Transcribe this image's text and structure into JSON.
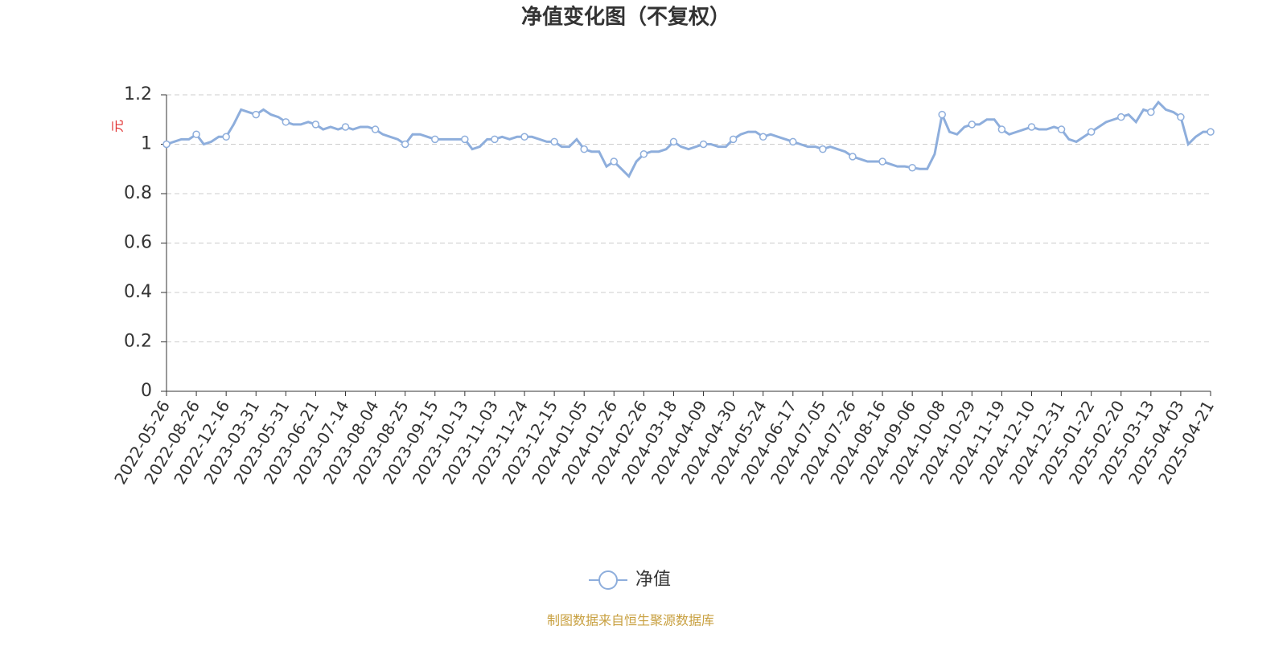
{
  "chart_data": {
    "type": "line",
    "title": "净值变化图（不复权）",
    "y_label": "元",
    "source": "制图数据来自恒生聚源数据库",
    "categories": [
      "2022-05-26",
      null,
      null,
      null,
      "2022-08-26",
      null,
      null,
      null,
      "2022-12-16",
      null,
      null,
      null,
      "2023-03-31",
      null,
      null,
      null,
      "2023-05-31",
      null,
      null,
      null,
      "2023-06-21",
      null,
      null,
      null,
      "2023-07-14",
      null,
      null,
      null,
      "2023-08-04",
      null,
      null,
      null,
      "2023-08-25",
      null,
      null,
      null,
      "2023-09-15",
      null,
      null,
      null,
      "2023-10-13",
      null,
      null,
      null,
      "2023-11-03",
      null,
      null,
      null,
      "2023-11-24",
      null,
      null,
      null,
      "2023-12-15",
      null,
      null,
      null,
      "2024-01-05",
      null,
      null,
      null,
      "2024-01-26",
      null,
      null,
      null,
      "2024-02-26",
      null,
      null,
      null,
      "2024-03-18",
      null,
      null,
      null,
      "2024-04-09",
      null,
      null,
      null,
      "2024-04-30",
      null,
      null,
      null,
      "2024-05-24",
      null,
      null,
      null,
      "2024-06-17",
      null,
      null,
      null,
      "2024-07-05",
      null,
      null,
      null,
      "2024-07-26",
      null,
      null,
      null,
      "2024-08-16",
      null,
      null,
      null,
      "2024-09-06",
      null,
      null,
      null,
      "2024-10-08",
      null,
      null,
      null,
      "2024-10-29",
      null,
      null,
      null,
      "2024-11-19",
      null,
      null,
      null,
      "2024-12-10",
      null,
      null,
      null,
      "2024-12-31",
      null,
      null,
      null,
      "2025-01-22",
      null,
      null,
      null,
      "2025-02-20",
      null,
      null,
      null,
      "2025-03-13",
      null,
      null,
      null,
      "2025-04-03",
      null,
      null,
      null,
      "2025-04-21"
    ],
    "series": [
      {
        "name": "净值",
        "color": "#8eaedc",
        "values": [
          1.0,
          1.01,
          1.02,
          1.02,
          1.04,
          1.0,
          1.01,
          1.03,
          1.03,
          1.08,
          1.14,
          1.13,
          1.12,
          1.14,
          1.12,
          1.11,
          1.09,
          1.08,
          1.08,
          1.09,
          1.08,
          1.06,
          1.07,
          1.06,
          1.07,
          1.06,
          1.07,
          1.07,
          1.06,
          1.04,
          1.03,
          1.02,
          1.0,
          1.04,
          1.04,
          1.03,
          1.02,
          1.02,
          1.02,
          1.02,
          1.02,
          0.98,
          0.99,
          1.02,
          1.02,
          1.03,
          1.02,
          1.03,
          1.03,
          1.03,
          1.02,
          1.01,
          1.01,
          0.99,
          0.99,
          1.02,
          0.98,
          0.97,
          0.97,
          0.91,
          0.93,
          0.9,
          0.87,
          0.93,
          0.96,
          0.97,
          0.97,
          0.98,
          1.01,
          0.99,
          0.98,
          0.99,
          1.0,
          1.0,
          0.99,
          0.99,
          1.02,
          1.04,
          1.05,
          1.05,
          1.03,
          1.04,
          1.03,
          1.02,
          1.01,
          1.0,
          0.99,
          0.99,
          0.98,
          0.99,
          0.98,
          0.97,
          0.95,
          0.94,
          0.93,
          0.93,
          0.93,
          0.92,
          0.91,
          0.91,
          0.905,
          0.9,
          0.9,
          0.96,
          1.12,
          1.05,
          1.04,
          1.07,
          1.08,
          1.08,
          1.1,
          1.1,
          1.06,
          1.04,
          1.05,
          1.06,
          1.07,
          1.06,
          1.06,
          1.07,
          1.06,
          1.02,
          1.01,
          1.03,
          1.05,
          1.07,
          1.09,
          1.1,
          1.11,
          1.12,
          1.09,
          1.14,
          1.13,
          1.17,
          1.14,
          1.13,
          1.11,
          1.0,
          1.03,
          1.05,
          1.05
        ]
      }
    ],
    "ylim": [
      0,
      1.2
    ],
    "yticks": [
      0,
      0.2,
      0.4,
      0.6,
      0.8,
      1,
      1.2
    ],
    "grid": true
  }
}
